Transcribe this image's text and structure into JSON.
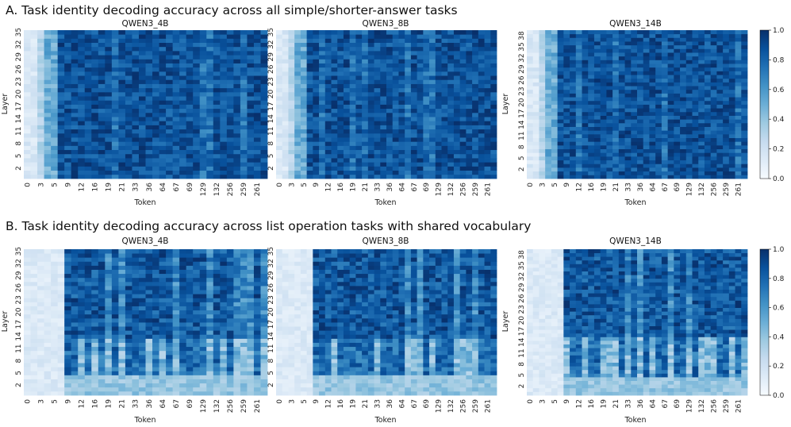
{
  "colors": {
    "low": "#f7fbff",
    "mid": "#6baed6",
    "high": "#08306b"
  },
  "chart_data": {
    "type": "heatmap",
    "x_label": "Token",
    "y_label": "Layer",
    "colorbar": {
      "range": [
        0.0,
        1.0
      ],
      "ticks": [
        "0.0",
        "0.2",
        "0.4",
        "0.6",
        "0.8",
        "1.0"
      ]
    },
    "x_tick_labels": [
      "0",
      "3",
      "5",
      "9",
      "12",
      "16",
      "19",
      "21",
      "33",
      "36",
      "64",
      "67",
      "69",
      "129",
      "132",
      "256",
      "259",
      "261"
    ],
    "sections": [
      {
        "title": "A. Task identity decoding accuracy across all simple/shorter-answer tasks",
        "pattern": "simple",
        "panels": [
          {
            "title": "QWEN3_4B",
            "num_layers": 36,
            "y_tick_labels": [
              "2",
              "5",
              "8",
              "11",
              "14",
              "17",
              "20",
              "23",
              "26",
              "29",
              "32",
              "35"
            ]
          },
          {
            "title": "QWEN3_8B",
            "num_layers": 36,
            "y_tick_labels": [
              "2",
              "5",
              "8",
              "11",
              "14",
              "17",
              "20",
              "23",
              "26",
              "29",
              "32",
              "35"
            ]
          },
          {
            "title": "QWEN3_14B",
            "num_layers": 40,
            "y_tick_labels": [
              "2",
              "5",
              "8",
              "11",
              "14",
              "17",
              "20",
              "23",
              "26",
              "29",
              "32",
              "35",
              "38"
            ]
          }
        ]
      },
      {
        "title": "B. Task identity decoding accuracy across list operation tasks with shared vocabulary",
        "pattern": "list",
        "panels": [
          {
            "title": "QWEN3_4B",
            "num_layers": 36,
            "y_tick_labels": [
              "2",
              "5",
              "8",
              "11",
              "14",
              "17",
              "20",
              "23",
              "26",
              "29",
              "32",
              "35"
            ]
          },
          {
            "title": "QWEN3_8B",
            "num_layers": 36,
            "y_tick_labels": [
              "2",
              "5",
              "8",
              "11",
              "14",
              "17",
              "20",
              "23",
              "26",
              "29",
              "32",
              "35"
            ]
          },
          {
            "title": "QWEN3_14B",
            "num_layers": 40,
            "y_tick_labels": [
              "2",
              "5",
              "8",
              "11",
              "14",
              "17",
              "20",
              "23",
              "26",
              "29",
              "32",
              "35",
              "38"
            ]
          }
        ]
      }
    ]
  }
}
